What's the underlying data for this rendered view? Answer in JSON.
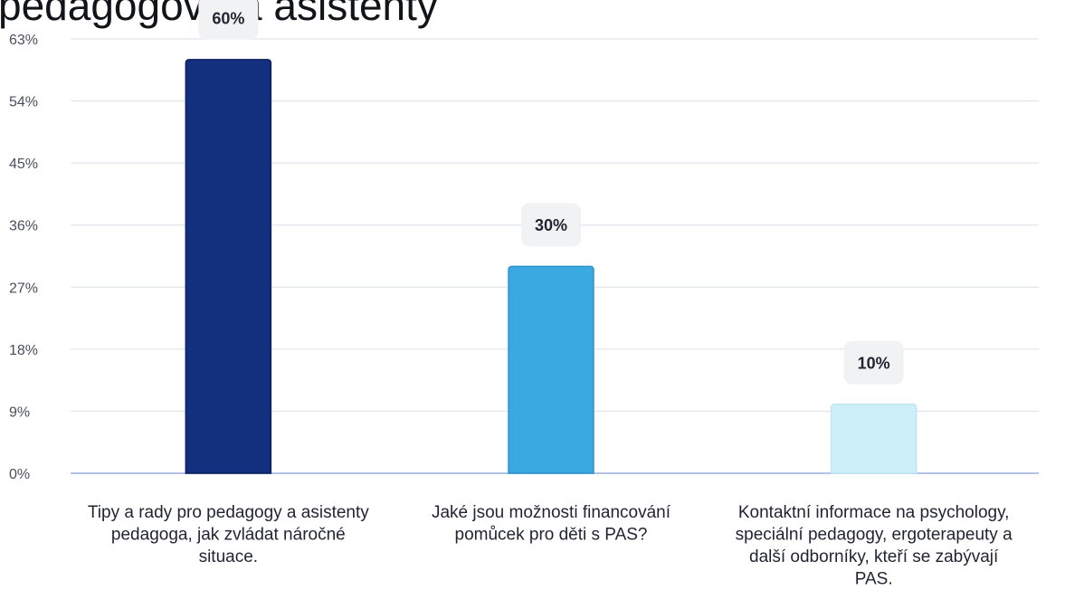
{
  "chart_data": {
    "type": "bar",
    "title": "pedagogové a asistenty",
    "categories": [
      [
        "Tipy a rady pro pedagogy a asistenty",
        "pedagoga, jak zvládat náročné",
        "situace."
      ],
      [
        "Jaké jsou možnosti financování",
        "pomůcek pro děti s PAS?"
      ],
      [
        "Kontaktní informace na psychology,",
        "speciální pedagogy, ergoterapeuty a",
        "další odborníky, kteří se zabývají",
        "PAS."
      ]
    ],
    "values": [
      60,
      30,
      10
    ],
    "data_labels": [
      "60%",
      "30%",
      "10%"
    ],
    "bar_colors": [
      "#13307f",
      "#3aa9e2",
      "#cdeff8"
    ],
    "y_ticks": [
      "0%",
      "9%",
      "18%",
      "27%",
      "36%",
      "45%",
      "54%",
      "63%"
    ],
    "ylim": [
      0,
      63
    ],
    "grid": true,
    "xlabel": "",
    "ylabel": ""
  }
}
